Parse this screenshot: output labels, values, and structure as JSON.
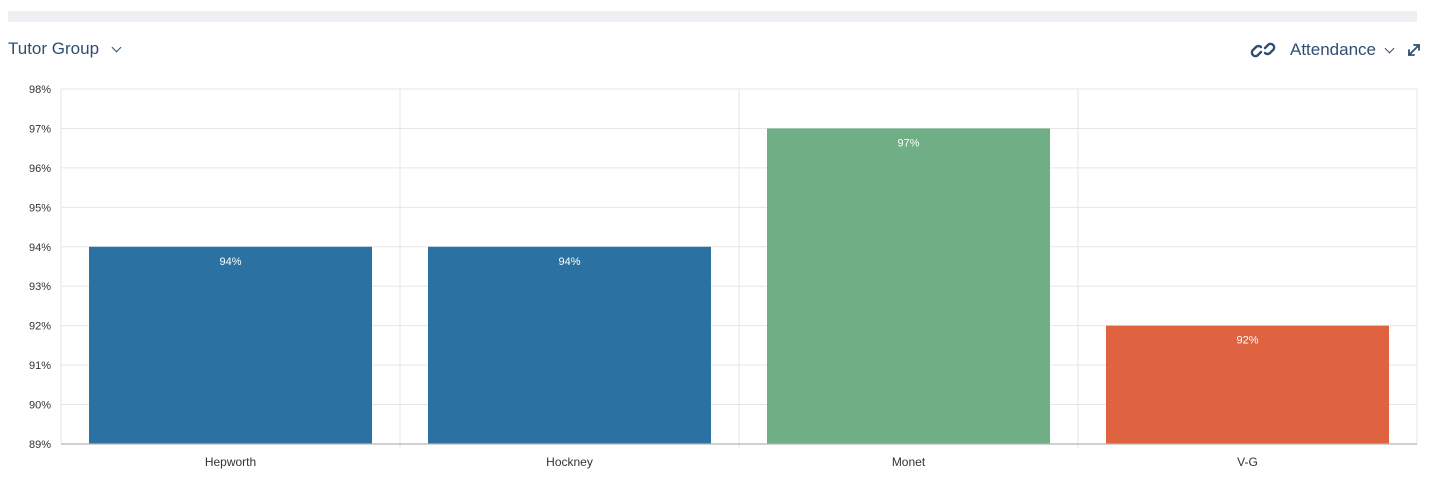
{
  "header": {
    "group_selector_label": "Tutor Group",
    "metric_selector_label": "Attendance"
  },
  "icons": {
    "link": "link-icon",
    "expand": "expand-icon",
    "dropdown": "chevron-down-icon"
  },
  "chart_data": {
    "type": "bar",
    "categories": [
      "Hepworth",
      "Hockney",
      "Monet",
      "V-G"
    ],
    "values": [
      94,
      94,
      97,
      92
    ],
    "data_labels": [
      "94%",
      "94%",
      "97%",
      "92%"
    ],
    "bar_colors": [
      "#2b72a2",
      "#2b72a2",
      "#70ae86",
      "#e06341"
    ],
    "title": "",
    "xlabel": "",
    "ylabel": "",
    "ylim": [
      89,
      98
    ],
    "yticks": [
      89,
      90,
      91,
      92,
      93,
      94,
      95,
      96,
      97,
      98
    ],
    "ytick_labels": [
      "89%",
      "90%",
      "91%",
      "92%",
      "93%",
      "94%",
      "95%",
      "96%",
      "97%",
      "98%"
    ],
    "grid": true,
    "legend": "none"
  }
}
